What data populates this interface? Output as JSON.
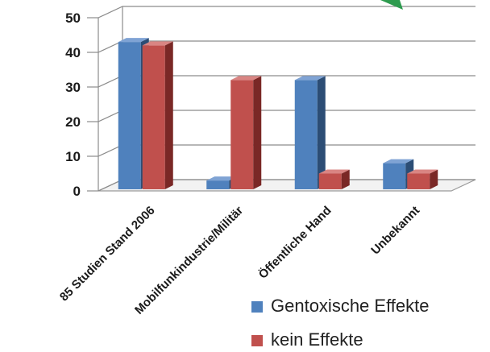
{
  "chart_data": {
    "type": "bar",
    "categories": [
      "85 Studien Stand 2006",
      "Mobilfunkindustrie/Militär",
      "Öffentliche Hand",
      "Unbekannt"
    ],
    "series": [
      {
        "name": "Gentoxische Effekte",
        "values": [
          43,
          3,
          32,
          8
        ],
        "color": "#4f81bd",
        "side_color": "#2c4d75",
        "top_color": "#7fa3d4"
      },
      {
        "name": "kein Effekte",
        "values": [
          42,
          32,
          5,
          5
        ],
        "color": "#c0504d",
        "side_color": "#7a2826",
        "top_color": "#d98583"
      }
    ],
    "yticks": [
      0,
      10,
      20,
      30,
      40,
      50
    ],
    "ylim": [
      0,
      50
    ],
    "grid": true,
    "legend": "bottom-right",
    "three_d": true
  }
}
